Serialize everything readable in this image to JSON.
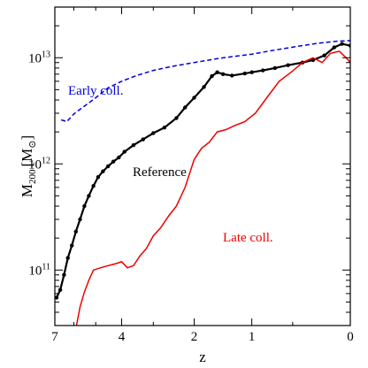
{
  "chart_data": {
    "type": "line",
    "xlabel": "z",
    "ylabel_main": "M",
    "ylabel_sub": "200",
    "ylabel_unit_open": "[M",
    "ylabel_unit_sub": "⊙",
    "ylabel_unit_close": "]",
    "x_scale": "log(1+z), reversed",
    "xlim": [
      7,
      0
    ],
    "y_scale": "log",
    "ylim": [
      30000000000.0,
      30000000000000.0
    ],
    "x_ticks": [
      {
        "value": 7,
        "label": "7"
      },
      {
        "value": 4,
        "label": "4"
      },
      {
        "value": 2,
        "label": "2"
      },
      {
        "value": 1,
        "label": "1"
      },
      {
        "value": 0,
        "label": "0"
      }
    ],
    "y_ticks": [
      {
        "value": 100000000000.0,
        "label_base": "10",
        "label_exp": "11"
      },
      {
        "value": 1000000000000.0,
        "label_base": "10",
        "label_exp": "12"
      },
      {
        "value": 10000000000000.0,
        "label_base": "10",
        "label_exp": "13"
      }
    ],
    "grid": false,
    "legend": "none (inline labels)",
    "series": [
      {
        "name": "Early coll.",
        "color": "#0000dd",
        "style": "dashed",
        "points": [
          [
            6.65,
            2600000000000.0
          ],
          [
            6.35,
            2500000000000.0
          ],
          [
            6.0,
            2950000000000.0
          ],
          [
            5.5,
            3500000000000.0
          ],
          [
            5.0,
            4200000000000.0
          ],
          [
            4.5,
            5200000000000.0
          ],
          [
            4.0,
            6000000000000.0
          ],
          [
            3.5,
            6800000000000.0
          ],
          [
            3.0,
            7600000000000.0
          ],
          [
            2.5,
            8300000000000.0
          ],
          [
            2.0,
            9000000000000.0
          ],
          [
            1.5,
            9900000000000.0
          ],
          [
            1.0,
            10800000000000.0
          ],
          [
            0.7,
            11800000000000.0
          ],
          [
            0.45,
            12800000000000.0
          ],
          [
            0.25,
            13700000000000.0
          ],
          [
            0.1,
            14300000000000.0
          ],
          [
            0.0,
            14500000000000.0
          ]
        ]
      },
      {
        "name": "Reference",
        "color": "#000000",
        "style": "solid-markers",
        "points": [
          [
            6.9,
            55000000000.0
          ],
          [
            6.7,
            65000000000.0
          ],
          [
            6.5,
            90000000000.0
          ],
          [
            6.3,
            130000000000.0
          ],
          [
            6.1,
            170000000000.0
          ],
          [
            5.9,
            230000000000.0
          ],
          [
            5.7,
            300000000000.0
          ],
          [
            5.5,
            400000000000.0
          ],
          [
            5.3,
            500000000000.0
          ],
          [
            5.1,
            620000000000.0
          ],
          [
            4.9,
            750000000000.0
          ],
          [
            4.7,
            850000000000.0
          ],
          [
            4.5,
            950000000000.0
          ],
          [
            4.3,
            1050000000000.0
          ],
          [
            4.1,
            1150000000000.0
          ],
          [
            3.9,
            1300000000000.0
          ],
          [
            3.6,
            1500000000000.0
          ],
          [
            3.3,
            1700000000000.0
          ],
          [
            3.0,
            1950000000000.0
          ],
          [
            2.7,
            2200000000000.0
          ],
          [
            2.4,
            2700000000000.0
          ],
          [
            2.2,
            3400000000000.0
          ],
          [
            2.0,
            4200000000000.0
          ],
          [
            1.8,
            5300000000000.0
          ],
          [
            1.65,
            6700000000000.0
          ],
          [
            1.55,
            7300000000000.0
          ],
          [
            1.45,
            7000000000000.0
          ],
          [
            1.3,
            6800000000000.0
          ],
          [
            1.1,
            7100000000000.0
          ],
          [
            1.0,
            7300000000000.0
          ],
          [
            0.85,
            7600000000000.0
          ],
          [
            0.7,
            8000000000000.0
          ],
          [
            0.55,
            8500000000000.0
          ],
          [
            0.4,
            9000000000000.0
          ],
          [
            0.3,
            9500000000000.0
          ],
          [
            0.2,
            10500000000000.0
          ],
          [
            0.12,
            12500000000000.0
          ],
          [
            0.06,
            13500000000000.0
          ],
          [
            0.0,
            13000000000000.0
          ]
        ]
      },
      {
        "name": "Late coll.",
        "color": "#ee0000",
        "style": "solid",
        "points": [
          [
            5.9,
            28000000000.0
          ],
          [
            5.7,
            45000000000.0
          ],
          [
            5.5,
            62000000000.0
          ],
          [
            5.3,
            80000000000.0
          ],
          [
            5.1,
            100000000000.0
          ],
          [
            4.8,
            105000000000.0
          ],
          [
            4.5,
            110000000000.0
          ],
          [
            4.2,
            115000000000.0
          ],
          [
            4.0,
            120000000000.0
          ],
          [
            3.8,
            105000000000.0
          ],
          [
            3.6,
            110000000000.0
          ],
          [
            3.4,
            135000000000.0
          ],
          [
            3.2,
            160000000000.0
          ],
          [
            3.0,
            210000000000.0
          ],
          [
            2.8,
            250000000000.0
          ],
          [
            2.6,
            320000000000.0
          ],
          [
            2.4,
            400000000000.0
          ],
          [
            2.2,
            600000000000.0
          ],
          [
            2.0,
            1100000000000.0
          ],
          [
            1.85,
            1400000000000.0
          ],
          [
            1.7,
            1600000000000.0
          ],
          [
            1.55,
            2000000000000.0
          ],
          [
            1.4,
            2100000000000.0
          ],
          [
            1.25,
            2300000000000.0
          ],
          [
            1.1,
            2500000000000.0
          ],
          [
            0.95,
            3000000000000.0
          ],
          [
            0.8,
            4200000000000.0
          ],
          [
            0.65,
            6000000000000.0
          ],
          [
            0.5,
            7500000000000.0
          ],
          [
            0.4,
            9000000000000.0
          ],
          [
            0.3,
            10000000000000.0
          ],
          [
            0.22,
            9000000000000.0
          ],
          [
            0.15,
            11000000000000.0
          ],
          [
            0.08,
            11500000000000.0
          ],
          [
            0.03,
            10000000000000.0
          ],
          [
            0.0,
            9000000000000.0
          ]
        ]
      }
    ],
    "annotations": [
      {
        "text": "Early coll.",
        "series": "Early coll."
      },
      {
        "text": "Reference",
        "series": "Reference"
      },
      {
        "text": "Late coll.",
        "series": "Late coll."
      }
    ]
  }
}
